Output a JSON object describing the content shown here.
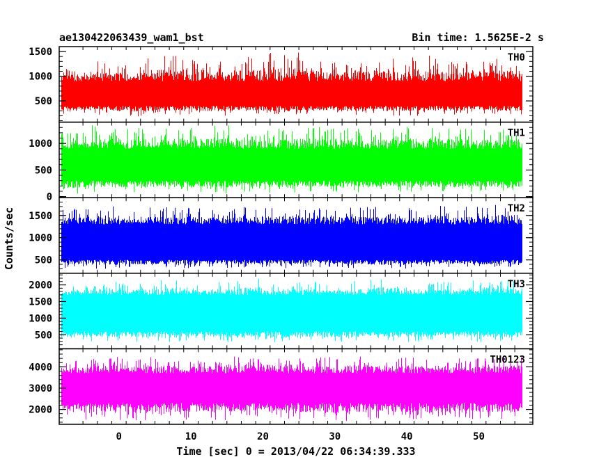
{
  "chart_data": {
    "type": "line",
    "title": "ae130422063439_wam1_bst",
    "bin_time_label": "Bin time: 1.5625E-2 s",
    "xlabel": "Time [sec] 0 = 2013/04/22 06:34:39.333",
    "ylabel": "Counts/sec",
    "x_range": [
      -8.3,
      57.5
    ],
    "data_x_range": [
      -8.0,
      56.0
    ],
    "x_ticks": [
      0,
      10,
      20,
      30,
      40,
      50
    ],
    "x_tick_labels": [
      "0",
      "10",
      "20",
      "30",
      "40",
      "50"
    ],
    "grid": false,
    "series": [
      {
        "name": "TH0",
        "color": "#ff0000",
        "ylim": [
          70,
          1600
        ],
        "y_ticks": [
          500,
          1000,
          1500
        ],
        "y_tick_labels": [
          "500",
          "1000",
          "1500"
        ],
        "envelope_min": [
          200,
          220,
          180,
          230,
          210,
          190,
          240,
          200,
          220,
          230,
          210,
          200,
          190,
          220,
          240,
          210
        ],
        "envelope_max": [
          1200,
          1350,
          1280,
          1450,
          1380,
          1320,
          1420,
          1520,
          1480,
          1300,
          1400,
          1360,
          1450,
          1330,
          1300,
          1380
        ],
        "typical_low": 400,
        "typical_high": 900
      },
      {
        "name": "TH1",
        "color": "#00ff00",
        "ylim": [
          -20,
          1400
        ],
        "y_ticks": [
          0,
          500,
          1000
        ],
        "y_tick_labels": [
          "0",
          "500",
          "1000"
        ],
        "envelope_min": [
          50,
          80,
          60,
          70,
          90,
          60,
          80,
          70,
          60,
          90,
          70,
          80,
          60,
          70,
          80,
          70
        ],
        "envelope_max": [
          1200,
          1350,
          1300,
          1280,
          1320,
          1350,
          1300,
          1280,
          1330,
          1340,
          1300,
          1290,
          1350,
          1320,
          1280,
          1300
        ],
        "typical_low": 300,
        "typical_high": 900
      },
      {
        "name": "TH2",
        "color": "#0000ff",
        "ylim": [
          200,
          1900
        ],
        "y_ticks": [
          500,
          1000,
          1500
        ],
        "y_tick_labels": [
          "500",
          "1000",
          "1500"
        ],
        "envelope_min": [
          320,
          300,
          310,
          330,
          300,
          320,
          310,
          300,
          330,
          320,
          310,
          300,
          320,
          330,
          310,
          320
        ],
        "envelope_max": [
          1650,
          1750,
          1600,
          1700,
          1680,
          1650,
          1720,
          1700,
          1680,
          1750,
          1700,
          1650,
          1680,
          1720,
          1700,
          1780
        ],
        "typical_low": 500,
        "typical_high": 1300
      },
      {
        "name": "TH3",
        "color": "#00ffff",
        "ylim": [
          80,
          2350
        ],
        "y_ticks": [
          500,
          1000,
          1500,
          2000
        ],
        "y_tick_labels": [
          "500",
          "1000",
          "1500",
          "2000"
        ],
        "envelope_min": [
          250,
          300,
          280,
          260,
          300,
          270,
          280,
          260,
          300,
          270,
          290,
          280,
          260,
          300,
          280,
          270
        ],
        "envelope_max": [
          2000,
          2100,
          2050,
          2150,
          2000,
          2100,
          2200,
          2050,
          2100,
          2000,
          2150,
          2200,
          2050,
          2100,
          2150,
          2200
        ],
        "typical_low": 600,
        "typical_high": 1700
      },
      {
        "name": "TH0123",
        "color": "#ff00ff",
        "ylim": [
          1300,
          4850
        ],
        "y_ticks": [
          2000,
          3000,
          4000
        ],
        "y_tick_labels": [
          "2000",
          "3000",
          "4000"
        ],
        "envelope_min": [
          1500,
          1550,
          1450,
          1500,
          1520,
          1480,
          1500,
          1550,
          1500,
          1450,
          1500,
          1520,
          1480,
          1500,
          1550,
          1500
        ],
        "envelope_max": [
          4300,
          4500,
          4400,
          4550,
          4450,
          4400,
          4500,
          4600,
          4400,
          4500,
          4550,
          4450,
          4500,
          4400,
          4450,
          4500
        ],
        "typical_low": 2300,
        "typical_high": 3700
      }
    ]
  }
}
